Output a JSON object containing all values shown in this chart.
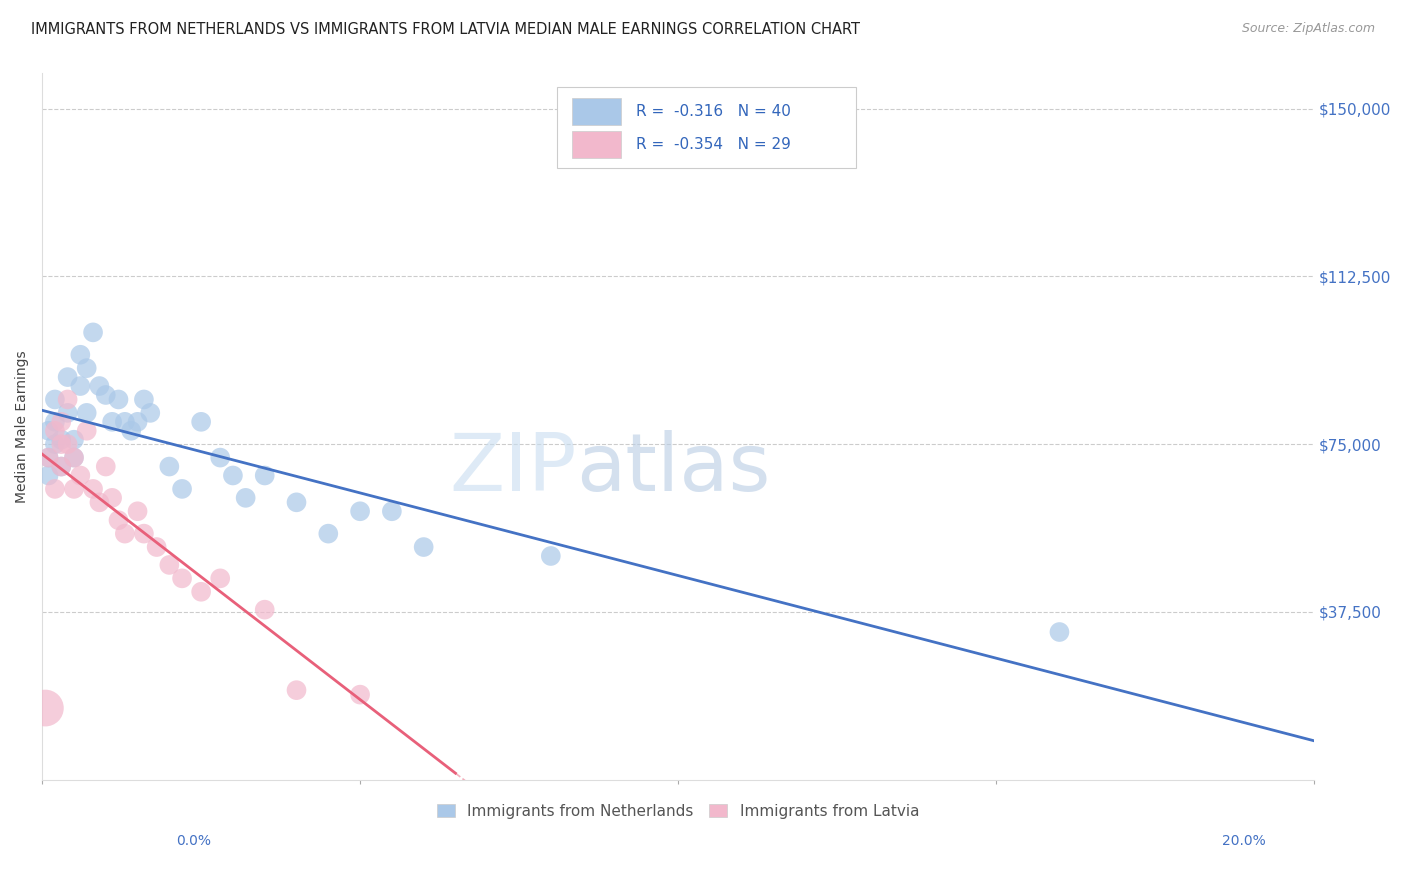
{
  "title": "IMMIGRANTS FROM NETHERLANDS VS IMMIGRANTS FROM LATVIA MEDIAN MALE EARNINGS CORRELATION CHART",
  "source": "Source: ZipAtlas.com",
  "ylabel": "Median Male Earnings",
  "yticks": [
    37500,
    75000,
    112500,
    150000
  ],
  "ytick_labels": [
    "$37,500",
    "$75,000",
    "$112,500",
    "$150,000"
  ],
  "xmin": 0.0,
  "xmax": 0.2,
  "ymin": 0,
  "ymax": 158000,
  "legend1_label": "Immigrants from Netherlands",
  "legend2_label": "Immigrants from Latvia",
  "R1": "-0.316",
  "N1": "40",
  "R2": "-0.354",
  "N2": "29",
  "color_netherlands": "#aac8e8",
  "color_latvia": "#f2b8cc",
  "color_netherlands_line": "#4472c4",
  "color_latvia_line": "#e8607a",
  "watermark_zip": "ZIP",
  "watermark_atlas": "atlas",
  "netherlands_x": [
    0.001,
    0.001,
    0.001,
    0.002,
    0.002,
    0.002,
    0.003,
    0.003,
    0.004,
    0.004,
    0.005,
    0.005,
    0.006,
    0.006,
    0.007,
    0.007,
    0.008,
    0.009,
    0.01,
    0.011,
    0.012,
    0.013,
    0.014,
    0.015,
    0.016,
    0.017,
    0.02,
    0.022,
    0.025,
    0.028,
    0.03,
    0.032,
    0.035,
    0.04,
    0.045,
    0.05,
    0.055,
    0.06,
    0.08,
    0.16
  ],
  "netherlands_y": [
    78000,
    72000,
    68000,
    80000,
    75000,
    85000,
    76000,
    70000,
    90000,
    82000,
    76000,
    72000,
    95000,
    88000,
    92000,
    82000,
    100000,
    88000,
    86000,
    80000,
    85000,
    80000,
    78000,
    80000,
    85000,
    82000,
    70000,
    65000,
    80000,
    72000,
    68000,
    63000,
    68000,
    62000,
    55000,
    60000,
    60000,
    52000,
    50000,
    33000
  ],
  "netherlands_size": [
    200,
    200,
    200,
    200,
    200,
    200,
    200,
    200,
    200,
    200,
    200,
    200,
    200,
    200,
    200,
    200,
    200,
    200,
    200,
    200,
    200,
    200,
    200,
    200,
    200,
    200,
    200,
    200,
    200,
    200,
    200,
    200,
    200,
    200,
    200,
    200,
    200,
    200,
    200,
    200
  ],
  "latvia_x": [
    0.0005,
    0.001,
    0.002,
    0.002,
    0.003,
    0.003,
    0.003,
    0.004,
    0.004,
    0.005,
    0.005,
    0.006,
    0.007,
    0.008,
    0.009,
    0.01,
    0.011,
    0.012,
    0.013,
    0.015,
    0.016,
    0.018,
    0.02,
    0.022,
    0.025,
    0.028,
    0.035,
    0.04,
    0.05
  ],
  "latvia_y": [
    16000,
    72000,
    78000,
    65000,
    80000,
    75000,
    70000,
    85000,
    75000,
    72000,
    65000,
    68000,
    78000,
    65000,
    62000,
    70000,
    63000,
    58000,
    55000,
    60000,
    55000,
    52000,
    48000,
    45000,
    42000,
    45000,
    38000,
    20000,
    19000
  ],
  "latvia_size": [
    700,
    200,
    200,
    200,
    200,
    200,
    200,
    200,
    200,
    200,
    200,
    200,
    200,
    200,
    200,
    200,
    200,
    200,
    200,
    200,
    200,
    200,
    200,
    200,
    200,
    200,
    200,
    200,
    200
  ]
}
